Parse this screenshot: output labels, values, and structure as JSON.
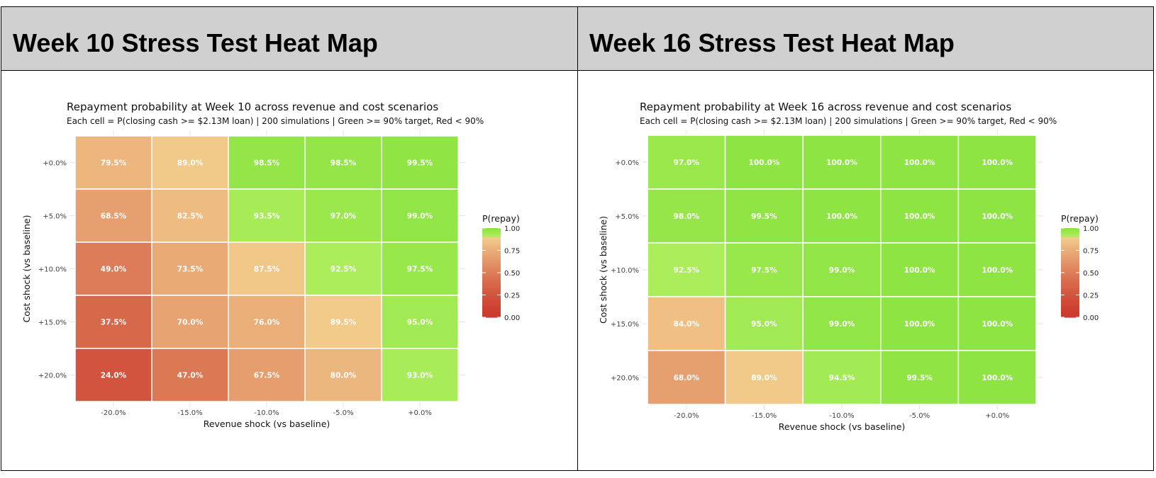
{
  "panels": [
    {
      "heading": "Week 10 Stress Test Heat Map"
    },
    {
      "heading": "Week 16 Stress Test Heat Map"
    }
  ],
  "chart_data": [
    {
      "type": "heatmap",
      "title": "Repayment probability at Week 10 across revenue and cost scenarios",
      "subtitle": "Each cell = P(closing cash >= $2.13M loan) | 200 simulations | Green >= 90% target, Red < 90%",
      "xlabel": "Revenue shock (vs baseline)",
      "ylabel": "Cost shock (vs baseline)",
      "x_categories": [
        "-20.0%",
        "-15.0%",
        "-10.0%",
        "-5.0%",
        "+0.0%"
      ],
      "y_categories": [
        "+0.0%",
        "+5.0%",
        "+10.0%",
        "+15.0%",
        "+20.0%"
      ],
      "values": [
        [
          0.795,
          0.89,
          0.985,
          0.985,
          0.995
        ],
        [
          0.685,
          0.825,
          0.935,
          0.97,
          0.99
        ],
        [
          0.49,
          0.735,
          0.875,
          0.925,
          0.975
        ],
        [
          0.375,
          0.7,
          0.76,
          0.895,
          0.95
        ],
        [
          0.24,
          0.47,
          0.675,
          0.8,
          0.93
        ]
      ],
      "labels": [
        [
          "79.5%",
          "89.0%",
          "98.5%",
          "98.5%",
          "99.5%"
        ],
        [
          "68.5%",
          "82.5%",
          "93.5%",
          "97.0%",
          "99.0%"
        ],
        [
          "49.0%",
          "73.5%",
          "87.5%",
          "92.5%",
          "97.5%"
        ],
        [
          "37.5%",
          "70.0%",
          "76.0%",
          "89.5%",
          "95.0%"
        ],
        [
          "24.0%",
          "47.0%",
          "67.5%",
          "80.0%",
          "93.0%"
        ]
      ],
      "legend": {
        "title": "P(repay)",
        "ticks": [
          "1.00",
          "0.75",
          "0.50",
          "0.25",
          "0.00"
        ],
        "placement": "right"
      },
      "threshold": 0.9,
      "colors": {
        "low": "#cb3a2d",
        "mid": "#f2cc8b",
        "high": "#8ee443"
      }
    },
    {
      "type": "heatmap",
      "title": "Repayment probability at Week 16 across revenue and cost scenarios",
      "subtitle": "Each cell = P(closing cash >= $2.13M loan) | 200 simulations | Green >= 90% target, Red < 90%",
      "xlabel": "Revenue shock (vs baseline)",
      "ylabel": "Cost shock (vs baseline)",
      "x_categories": [
        "-20.0%",
        "-15.0%",
        "-10.0%",
        "-5.0%",
        "+0.0%"
      ],
      "y_categories": [
        "+0.0%",
        "+5.0%",
        "+10.0%",
        "+15.0%",
        "+20.0%"
      ],
      "values": [
        [
          0.97,
          1.0,
          1.0,
          1.0,
          1.0
        ],
        [
          0.98,
          0.995,
          1.0,
          1.0,
          1.0
        ],
        [
          0.925,
          0.975,
          0.99,
          1.0,
          1.0
        ],
        [
          0.84,
          0.95,
          0.99,
          1.0,
          1.0
        ],
        [
          0.68,
          0.89,
          0.945,
          0.995,
          1.0
        ]
      ],
      "labels": [
        [
          "97.0%",
          "100.0%",
          "100.0%",
          "100.0%",
          "100.0%"
        ],
        [
          "98.0%",
          "99.5%",
          "100.0%",
          "100.0%",
          "100.0%"
        ],
        [
          "92.5%",
          "97.5%",
          "99.0%",
          "100.0%",
          "100.0%"
        ],
        [
          "84.0%",
          "95.0%",
          "99.0%",
          "100.0%",
          "100.0%"
        ],
        [
          "68.0%",
          "89.0%",
          "94.5%",
          "99.5%",
          "100.0%"
        ]
      ],
      "legend": {
        "title": "P(repay)",
        "ticks": [
          "1.00",
          "0.75",
          "0.50",
          "0.25",
          "0.00"
        ],
        "placement": "right"
      },
      "threshold": 0.9,
      "colors": {
        "low": "#cb3a2d",
        "mid": "#f2cc8b",
        "high": "#8ee443"
      }
    }
  ]
}
